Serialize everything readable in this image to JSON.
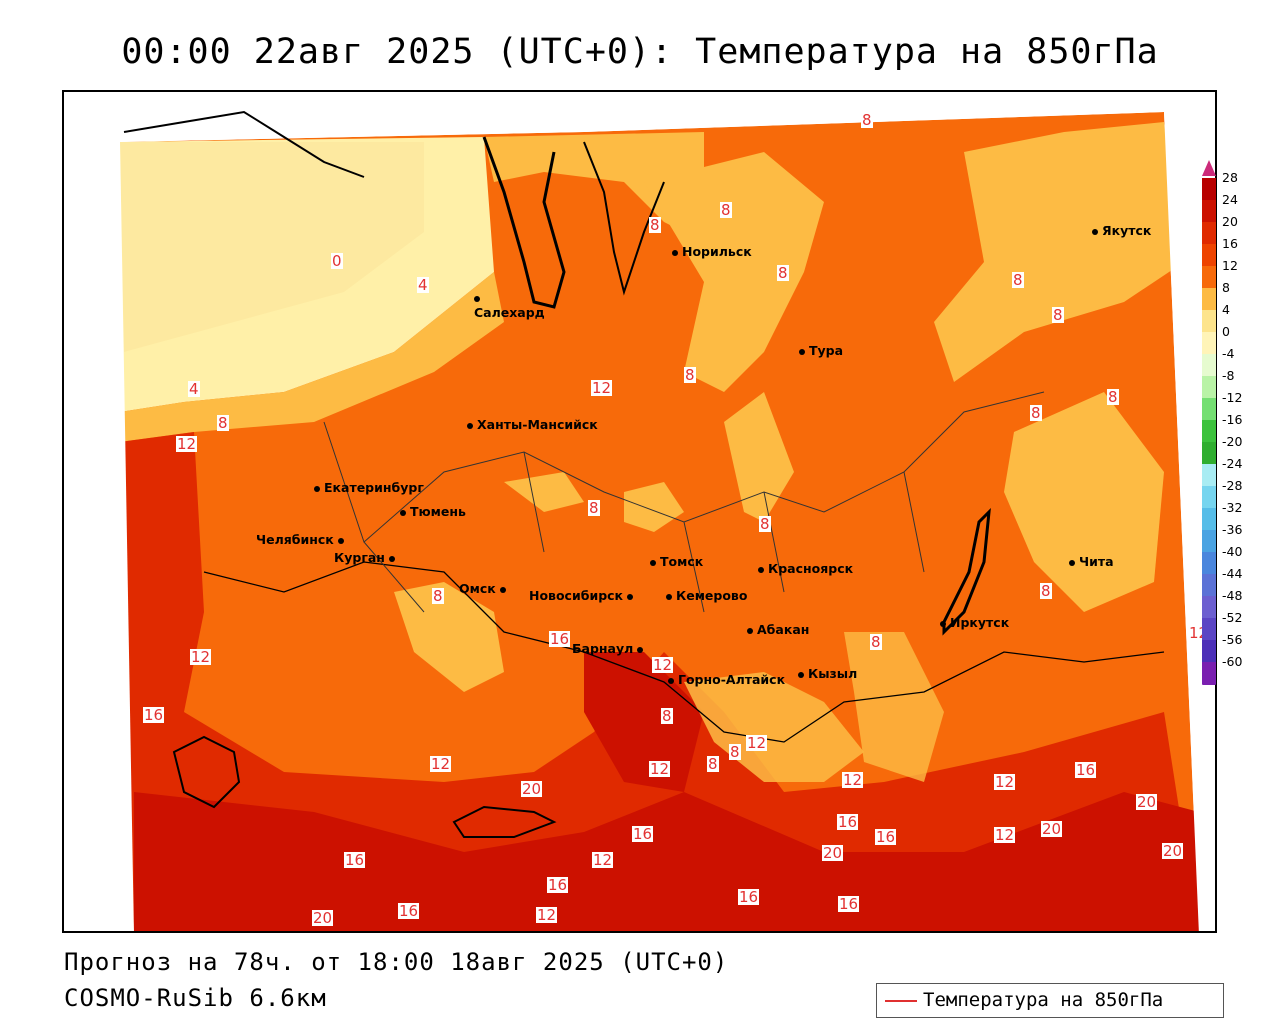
{
  "title": "00:00 22авг 2025 (UTC+0): Температура на 850гПа",
  "footer": {
    "forecast": "Прогноз на 78ч. от 18:00 18авг 2025 (UTC+0)",
    "model": "COSMO-RuSib 6.6км"
  },
  "legend": {
    "label": "Температура на 850гПа",
    "line_color": "#e03030"
  },
  "colorbar": {
    "labels": [
      "28",
      "24",
      "20",
      "16",
      "12",
      "8",
      "4",
      "0",
      "-4",
      "-8",
      "-12",
      "-16",
      "-20",
      "-24",
      "-28",
      "-32",
      "-36",
      "-40",
      "-44",
      "-48",
      "-52",
      "-56",
      "-60"
    ],
    "colors": [
      "#b80000",
      "#cc1100",
      "#e02a00",
      "#ee4400",
      "#f76a0a",
      "#fdbb44",
      "#fde48c",
      "#fff4b8",
      "#e6fbcf",
      "#b9f3a6",
      "#74df72",
      "#3cc23c",
      "#2fae2f",
      "#a8ecf3",
      "#76d5ef",
      "#56bde8",
      "#4aa3e2",
      "#4a86dd",
      "#5b72d6",
      "#6c5fd0",
      "#5b45c4",
      "#4c2fb8",
      "#7a1fb0"
    ]
  },
  "cities": [
    {
      "name": "Салехард"
    },
    {
      "name": "Норильск"
    },
    {
      "name": "Тура"
    },
    {
      "name": "Якутск"
    },
    {
      "name": "Ханты-Мансийск"
    },
    {
      "name": "Екатеринбург"
    },
    {
      "name": "Тюмень"
    },
    {
      "name": "Челябинск"
    },
    {
      "name": "Курган"
    },
    {
      "name": "Омск"
    },
    {
      "name": "Новосибирск"
    },
    {
      "name": "Томск"
    },
    {
      "name": "Кемерово"
    },
    {
      "name": "Красноярск"
    },
    {
      "name": "Абакан"
    },
    {
      "name": "Барнаул"
    },
    {
      "name": "Горно-Алтайск"
    },
    {
      "name": "Кызыл"
    },
    {
      "name": "Иркутск"
    },
    {
      "name": "Чита"
    }
  ],
  "contour_labels": [
    "8",
    "8",
    "8",
    "0",
    "4",
    "8",
    "8",
    "8",
    "8",
    "12",
    "8",
    "4",
    "8",
    "12",
    "8",
    "8",
    "8",
    "8",
    "8",
    "8",
    "12",
    "16",
    "12",
    "12",
    "16",
    "8",
    "8",
    "8",
    "12",
    "12",
    "12",
    "12",
    "20",
    "12",
    "16",
    "16",
    "16",
    "16",
    "12",
    "16",
    "20",
    "20",
    "20",
    "16",
    "12",
    "16",
    "16",
    "12",
    "16",
    "20",
    "20"
  ]
}
